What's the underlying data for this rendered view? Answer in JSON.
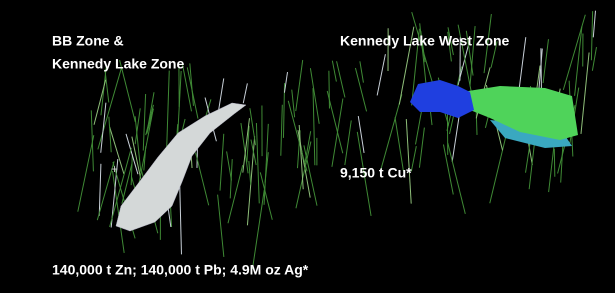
{
  "labels": {
    "bb_zone": [
      "BB Zone &",
      "Kennedy Lake Zone"
    ],
    "west_zone": "Kennedy Lake West Zone",
    "west_resource": "9,150 t Cu*",
    "bb_resource": "140,000 t Zn; 140,000 t Pb; 4.9M oz Ag*"
  }
}
